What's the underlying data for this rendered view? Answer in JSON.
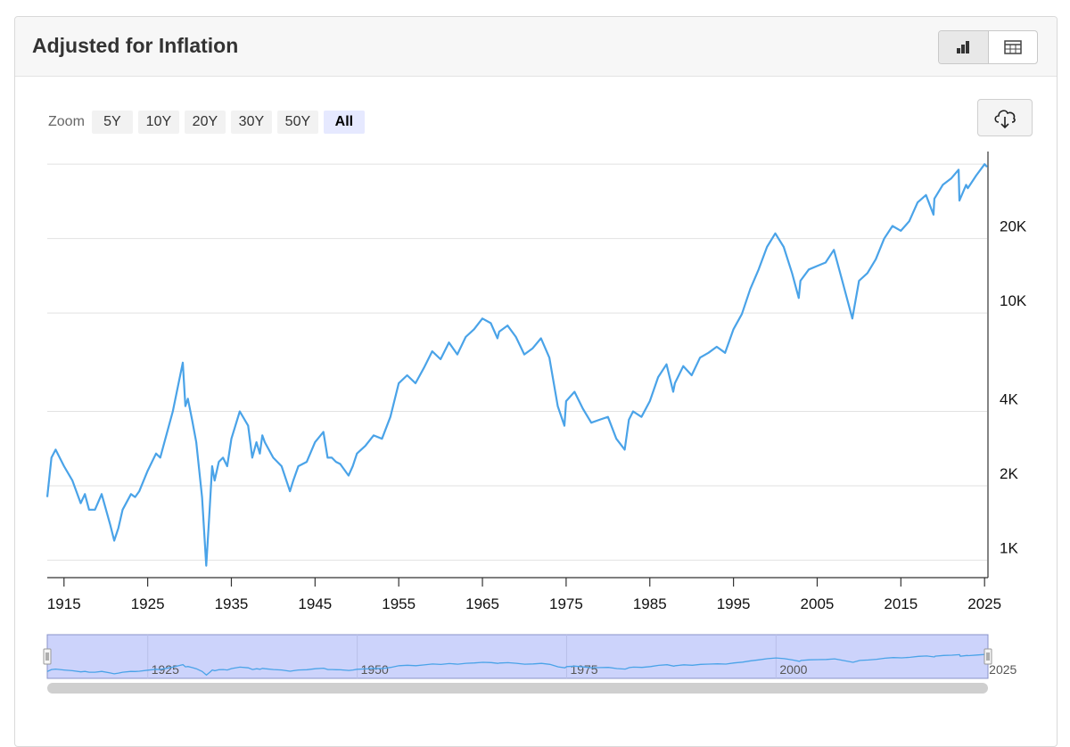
{
  "header": {
    "title": "Adjusted for Inflation",
    "chart_view_icon": "bar-chart-icon",
    "table_view_icon": "table-icon"
  },
  "zoom": {
    "label": "Zoom",
    "options": [
      "5Y",
      "10Y",
      "20Y",
      "30Y",
      "50Y",
      "All"
    ],
    "selected": "All"
  },
  "download_icon": "cloud-download-icon",
  "navigator": {
    "labels": [
      "1925",
      "1950",
      "1975",
      "2000",
      "2025"
    ]
  },
  "colors": {
    "line": "#4aa3e8",
    "navigator_fill": "#ccd3fb",
    "navigator_border": "#8a93c8"
  },
  "chart_data": {
    "type": "line",
    "title": "Adjusted for Inflation",
    "y_scale": "log",
    "ylim": [
      850,
      45000
    ],
    "xlim": [
      1913,
      2025.3
    ],
    "x_ticks": [
      1915,
      1925,
      1935,
      1945,
      1955,
      1965,
      1975,
      1985,
      1995,
      2005,
      2015,
      2025
    ],
    "y_ticks": [
      {
        "value": 1000,
        "label": "1K"
      },
      {
        "value": 2000,
        "label": "2K"
      },
      {
        "value": 4000,
        "label": "4K"
      },
      {
        "value": 10000,
        "label": "10K"
      },
      {
        "value": 20000,
        "label": "20K"
      },
      {
        "value": 40000,
        "label": ""
      }
    ],
    "grid": true,
    "x": [
      1913,
      1913.5,
      1914,
      1915,
      1916,
      1917,
      1917.5,
      1918,
      1918.7,
      1919.5,
      1920.5,
      1921,
      1921.5,
      1922,
      1923,
      1923.5,
      1924,
      1925,
      1926,
      1926.5,
      1927,
      1928,
      1929.2,
      1929.5,
      1929.8,
      1930.3,
      1930.8,
      1931.5,
      1932,
      1932.4,
      1932.7,
      1933,
      1933.5,
      1934,
      1934.5,
      1935,
      1936,
      1937,
      1937.5,
      1938,
      1938.4,
      1938.7,
      1939,
      1940,
      1941,
      1942,
      1942.4,
      1943,
      1944,
      1945,
      1946,
      1946.5,
      1947,
      1947.5,
      1948,
      1949,
      1949.5,
      1950,
      1951,
      1952,
      1953,
      1954,
      1955,
      1956,
      1957,
      1958,
      1959,
      1960,
      1961,
      1962,
      1963,
      1964,
      1965,
      1966,
      1966.8,
      1967,
      1968,
      1969,
      1970,
      1971,
      1972,
      1973,
      1974,
      1974.8,
      1975,
      1976,
      1977,
      1978,
      1979,
      1980,
      1981,
      1982,
      1982.5,
      1983,
      1984,
      1985,
      1986,
      1987,
      1987.8,
      1988,
      1989,
      1990,
      1991,
      1992,
      1993,
      1994,
      1995,
      1996,
      1997,
      1998,
      1999,
      2000,
      2001,
      2002,
      2002.8,
      2003,
      2004,
      2005,
      2006,
      2007,
      2008,
      2009.2,
      2010,
      2011,
      2012,
      2013,
      2014,
      2015,
      2016,
      2017,
      2018,
      2018.9,
      2019,
      2020,
      2021,
      2021.9,
      2022,
      2022.8,
      2023,
      2024,
      2025,
      2025.3
    ],
    "y": [
      1800,
      2600,
      2800,
      2400,
      2100,
      1700,
      1850,
      1600,
      1600,
      1850,
      1400,
      1200,
      1350,
      1600,
      1850,
      1800,
      1900,
      2300,
      2700,
      2600,
      3000,
      4000,
      6300,
      4200,
      4500,
      3700,
      3000,
      1800,
      950,
      1600,
      2400,
      2100,
      2500,
      2600,
      2400,
      3100,
      4000,
      3500,
      2600,
      3000,
      2700,
      3200,
      3000,
      2600,
      2400,
      1900,
      2100,
      2400,
      2500,
      3000,
      3300,
      2600,
      2600,
      2500,
      2450,
      2200,
      2400,
      2700,
      2900,
      3200,
      3100,
      3800,
      5200,
      5600,
      5200,
      6000,
      7000,
      6500,
      7600,
      6800,
      8000,
      8600,
      9500,
      9100,
      7900,
      8400,
      8900,
      8000,
      6800,
      7200,
      7900,
      6600,
      4200,
      3500,
      4400,
      4800,
      4100,
      3600,
      3700,
      3800,
      3100,
      2800,
      3700,
      4000,
      3800,
      4400,
      5500,
      6200,
      4800,
      5200,
      6100,
      5600,
      6600,
      6900,
      7300,
      6900,
      8600,
      9900,
      12500,
      15000,
      18500,
      21000,
      18500,
      14500,
      11500,
      13500,
      15000,
      15500,
      16000,
      18000,
      13500,
      9500,
      13500,
      14500,
      16500,
      20000,
      22500,
      21500,
      23500,
      28000,
      30000,
      25000,
      29000,
      33000,
      35000,
      38000,
      28500,
      33000,
      32000,
      36000,
      40000,
      39000
    ]
  }
}
